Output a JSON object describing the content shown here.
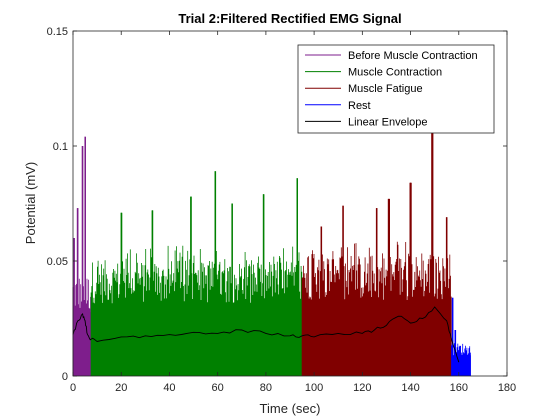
{
  "chart_data": {
    "type": "line",
    "title": "Trial 2:Filtered Rectified EMG Signal",
    "xlabel": "Time (sec)",
    "ylabel": "Potential (mV)",
    "xlim": [
      0,
      180
    ],
    "ylim": [
      0,
      0.15
    ],
    "x_ticks": [
      0,
      20,
      40,
      60,
      80,
      100,
      120,
      140,
      160,
      180
    ],
    "y_ticks": [
      0,
      0.05,
      0.1,
      0.15
    ],
    "x_tick_labels": [
      "0",
      "20",
      "40",
      "60",
      "80",
      "100",
      "120",
      "140",
      "160",
      "180"
    ],
    "y_tick_labels": [
      "0",
      "0.05",
      "0.1",
      "0.15"
    ],
    "grid": false,
    "legend_position": "top-right",
    "series": [
      {
        "name": "Before Muscle Contraction",
        "color": "#7E1E8C",
        "style": "filled-signal",
        "x_range": [
          0,
          7.5
        ],
        "base_level": 0.037,
        "peaks": [
          {
            "x": 4,
            "y": 0.1
          },
          {
            "x": 5,
            "y": 0.104
          },
          {
            "x": 2,
            "y": 0.073
          },
          {
            "x": 0.5,
            "y": 0.06
          }
        ]
      },
      {
        "name": "Muscle Contraction",
        "color": "#008000",
        "style": "filled-signal",
        "x_range": [
          7.5,
          95
        ],
        "base_level": 0.042,
        "peaks": [
          {
            "x": 20,
            "y": 0.071
          },
          {
            "x": 33,
            "y": 0.072
          },
          {
            "x": 49,
            "y": 0.078
          },
          {
            "x": 59,
            "y": 0.089
          },
          {
            "x": 66,
            "y": 0.075
          },
          {
            "x": 79,
            "y": 0.079
          },
          {
            "x": 93,
            "y": 0.086
          }
        ]
      },
      {
        "name": "Muscle Fatigue",
        "color": "#800000",
        "style": "filled-signal",
        "x_range": [
          95,
          157
        ],
        "base_level": 0.044,
        "peaks": [
          {
            "x": 103,
            "y": 0.065
          },
          {
            "x": 112,
            "y": 0.074
          },
          {
            "x": 126,
            "y": 0.073
          },
          {
            "x": 131,
            "y": 0.077
          },
          {
            "x": 140,
            "y": 0.084
          },
          {
            "x": 149,
            "y": 0.107
          },
          {
            "x": 155,
            "y": 0.069
          }
        ]
      },
      {
        "name": "Rest",
        "color": "#0000FF",
        "style": "filled-signal",
        "x_range": [
          157,
          165
        ],
        "base_level": 0.012,
        "peaks": [
          {
            "x": 157.5,
            "y": 0.034
          },
          {
            "x": 158.5,
            "y": 0.02
          }
        ]
      },
      {
        "name": "Linear Envelope",
        "color": "#000000",
        "style": "line",
        "x": [
          0,
          2,
          4,
          5,
          6,
          7.5,
          10,
          20,
          30,
          40,
          50,
          60,
          70,
          80,
          90,
          95,
          100,
          110,
          120,
          125,
          130,
          135,
          140,
          145,
          150,
          155,
          157,
          160
        ],
        "y": [
          0.018,
          0.024,
          0.027,
          0.024,
          0.018,
          0.016,
          0.015,
          0.017,
          0.0175,
          0.018,
          0.019,
          0.0185,
          0.02,
          0.0185,
          0.0175,
          0.0175,
          0.017,
          0.0185,
          0.0185,
          0.02,
          0.022,
          0.026,
          0.023,
          0.025,
          0.03,
          0.024,
          0.016,
          0.006
        ]
      }
    ]
  }
}
